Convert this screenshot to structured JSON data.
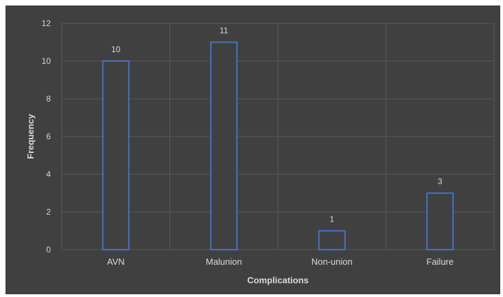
{
  "chart_data": {
    "type": "bar",
    "title": "",
    "xlabel": "Complications",
    "ylabel": "Frequency",
    "categories": [
      "AVN",
      "Malunion",
      "Non-union",
      "Failure"
    ],
    "values": [
      10,
      11,
      1,
      3
    ],
    "data_labels": [
      "10",
      "11",
      "1",
      "3"
    ],
    "ylim": [
      0,
      12
    ],
    "yticks": [
      0,
      2,
      4,
      6,
      8,
      10,
      12
    ],
    "grid": true,
    "legend": "none",
    "colors": {
      "background": "#404040",
      "bar_outline": "#4472c4",
      "bar_fill": "#404040",
      "grid": "#5a5a5a",
      "text": "#d9d9d9"
    }
  }
}
